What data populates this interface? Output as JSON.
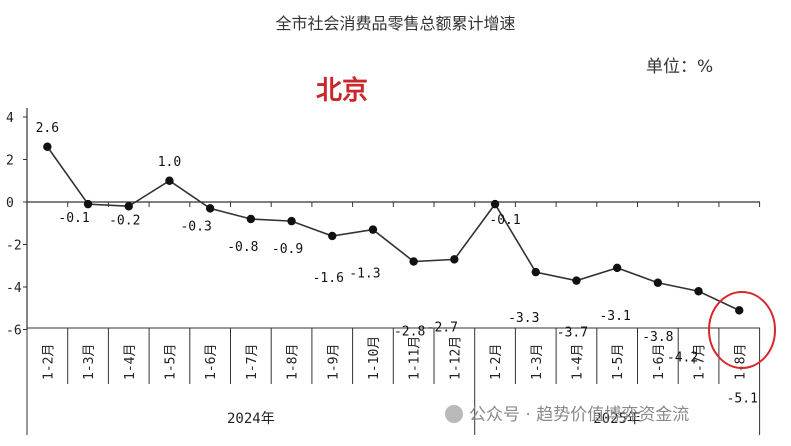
{
  "chart_data": {
    "type": "line",
    "title": "全市社会消费品零售总额累计增速",
    "subtitle": "北京",
    "unit_label": "单位：%",
    "categories": [
      "1-2月",
      "1-3月",
      "1-4月",
      "1-5月",
      "1-6月",
      "1-7月",
      "1-8月",
      "1-9月",
      "1-10月",
      "1-11月",
      "1-12月",
      "1-2月",
      "1-3月",
      "1-4月",
      "1-5月",
      "1-6月",
      "1-7月",
      "1-8月"
    ],
    "series": [
      {
        "values": [
          2.6,
          -0.1,
          -0.2,
          1.0,
          -0.3,
          -0.8,
          -0.9,
          -1.6,
          -1.3,
          -2.8,
          -2.7,
          -0.1,
          -3.3,
          -3.7,
          -3.1,
          -3.8,
          -4.2,
          -5.1
        ]
      }
    ],
    "data_labels": [
      "2.6",
      "-0.1",
      "-0.2",
      "1.0",
      "-0.3",
      "-0.8",
      "-0.9",
      "-1.6",
      "-1.3",
      "-2.8",
      "-2.7",
      "-0.1",
      "-3.3",
      "-3.7",
      "-3.1",
      "-3.8",
      "-4.2",
      "-5.1"
    ],
    "year_groups": [
      {
        "label": "2024年",
        "count": 11
      },
      {
        "label": "2025年",
        "count": 7
      }
    ],
    "y_ticks": [
      "4",
      "2",
      "0",
      "-2",
      "-4",
      "-6"
    ],
    "ylim": [
      -6,
      4
    ],
    "grid": false,
    "highlight_last_point": true,
    "colors": {
      "line": "#333333",
      "marker": "#111111",
      "highlight": "#d9262b",
      "city": "#c8282a"
    }
  },
  "watermark": "公众号 · 趋势价值博弈资金流"
}
